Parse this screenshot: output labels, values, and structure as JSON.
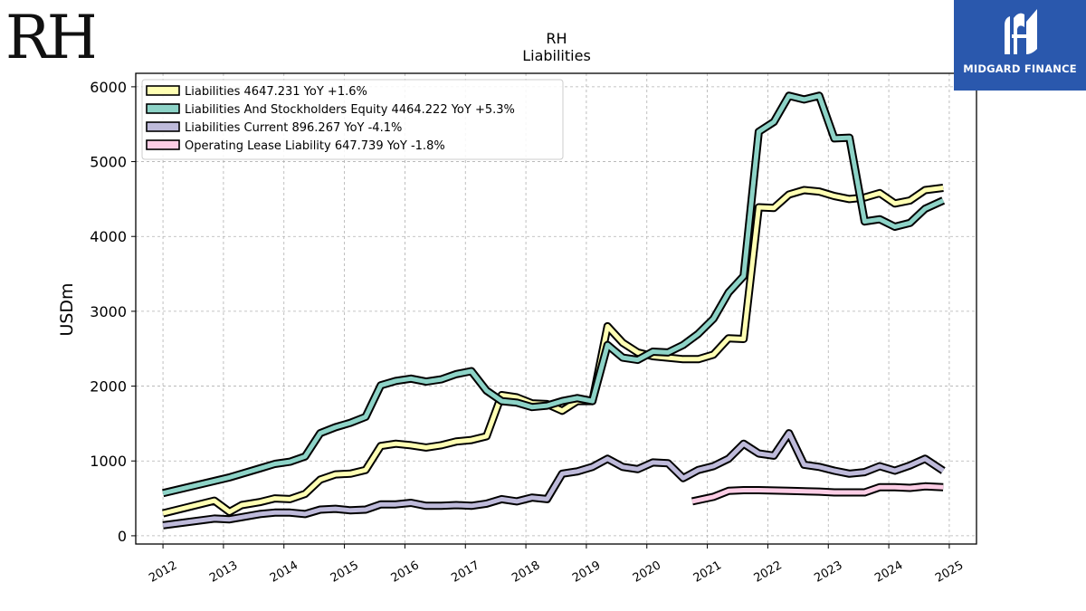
{
  "company_logo": {
    "text": "RH"
  },
  "brand": {
    "name": "MIDGARD FINANCE",
    "color": "#2a58ad"
  },
  "chart_data": {
    "type": "line",
    "title": "RH",
    "subtitle": "Liabilities",
    "ylabel": "USDm",
    "xlabel": "",
    "xlim": [
      2011.55,
      2025.45
    ],
    "ylim": [
      -110,
      6180
    ],
    "xticks": [
      2012,
      2013,
      2014,
      2015,
      2016,
      2017,
      2018,
      2019,
      2020,
      2021,
      2022,
      2023,
      2024,
      2025
    ],
    "xtick_labels": [
      "2012",
      "2013",
      "2014",
      "2015",
      "2016",
      "2017",
      "2018",
      "2019",
      "2020",
      "2021",
      "2022",
      "2023",
      "2024",
      "2025"
    ],
    "yticks": [
      0,
      1000,
      2000,
      3000,
      4000,
      5000,
      6000
    ],
    "ytick_labels": [
      "0",
      "1000",
      "2000",
      "3000",
      "4000",
      "5000",
      "6000"
    ],
    "grid": true,
    "legend_position": "top-left",
    "series": [
      {
        "name": "Liabilities",
        "legend_label": "Liabilities  4647.231 YoY +1.6%",
        "color": "#ffffb3",
        "points": [
          [
            2012.0,
            300
          ],
          [
            2012.85,
            470
          ],
          [
            2013.1,
            320
          ],
          [
            2013.3,
            410
          ],
          [
            2013.6,
            450
          ],
          [
            2013.85,
            500
          ],
          [
            2014.1,
            490
          ],
          [
            2014.35,
            560
          ],
          [
            2014.6,
            750
          ],
          [
            2014.85,
            820
          ],
          [
            2015.1,
            830
          ],
          [
            2015.35,
            880
          ],
          [
            2015.6,
            1200
          ],
          [
            2015.85,
            1230
          ],
          [
            2016.1,
            1210
          ],
          [
            2016.35,
            1180
          ],
          [
            2016.6,
            1210
          ],
          [
            2016.85,
            1260
          ],
          [
            2017.1,
            1280
          ],
          [
            2017.35,
            1330
          ],
          [
            2017.6,
            1880
          ],
          [
            2017.85,
            1850
          ],
          [
            2018.1,
            1770
          ],
          [
            2018.35,
            1760
          ],
          [
            2018.6,
            1670
          ],
          [
            2018.85,
            1800
          ],
          [
            2019.1,
            1800
          ],
          [
            2019.35,
            2800
          ],
          [
            2019.6,
            2580
          ],
          [
            2019.85,
            2450
          ],
          [
            2020.1,
            2400
          ],
          [
            2020.35,
            2380
          ],
          [
            2020.6,
            2360
          ],
          [
            2020.85,
            2360
          ],
          [
            2021.1,
            2420
          ],
          [
            2021.35,
            2640
          ],
          [
            2021.6,
            2630
          ],
          [
            2021.85,
            4390
          ],
          [
            2022.1,
            4380
          ],
          [
            2022.35,
            4560
          ],
          [
            2022.6,
            4620
          ],
          [
            2022.85,
            4600
          ],
          [
            2023.1,
            4540
          ],
          [
            2023.35,
            4500
          ],
          [
            2023.6,
            4520
          ],
          [
            2023.85,
            4580
          ],
          [
            2024.1,
            4440
          ],
          [
            2024.35,
            4480
          ],
          [
            2024.6,
            4620
          ],
          [
            2024.9,
            4650
          ]
        ]
      },
      {
        "name": "Liabilities And Stockholders Equity",
        "legend_label": "Liabilities And Stockholders Equity  4464.222 YoY +5.3%",
        "color": "#8dd3c7",
        "points": [
          [
            2012.0,
            570
          ],
          [
            2013.1,
            780
          ],
          [
            2013.6,
            900
          ],
          [
            2013.85,
            960
          ],
          [
            2014.1,
            990
          ],
          [
            2014.35,
            1060
          ],
          [
            2014.6,
            1370
          ],
          [
            2014.85,
            1450
          ],
          [
            2015.1,
            1510
          ],
          [
            2015.35,
            1590
          ],
          [
            2015.6,
            2010
          ],
          [
            2015.85,
            2070
          ],
          [
            2016.1,
            2100
          ],
          [
            2016.35,
            2060
          ],
          [
            2016.6,
            2090
          ],
          [
            2016.85,
            2160
          ],
          [
            2017.1,
            2200
          ],
          [
            2017.35,
            1940
          ],
          [
            2017.6,
            1800
          ],
          [
            2017.85,
            1780
          ],
          [
            2018.1,
            1720
          ],
          [
            2018.35,
            1740
          ],
          [
            2018.6,
            1800
          ],
          [
            2018.85,
            1840
          ],
          [
            2019.1,
            1800
          ],
          [
            2019.35,
            2550
          ],
          [
            2019.6,
            2380
          ],
          [
            2019.85,
            2350
          ],
          [
            2020.1,
            2460
          ],
          [
            2020.35,
            2450
          ],
          [
            2020.6,
            2550
          ],
          [
            2020.85,
            2700
          ],
          [
            2021.1,
            2900
          ],
          [
            2021.35,
            3250
          ],
          [
            2021.6,
            3470
          ],
          [
            2021.85,
            5400
          ],
          [
            2022.1,
            5530
          ],
          [
            2022.35,
            5880
          ],
          [
            2022.6,
            5830
          ],
          [
            2022.85,
            5880
          ],
          [
            2023.1,
            5310
          ],
          [
            2023.35,
            5320
          ],
          [
            2023.6,
            4200
          ],
          [
            2023.85,
            4230
          ],
          [
            2024.1,
            4130
          ],
          [
            2024.35,
            4180
          ],
          [
            2024.6,
            4370
          ],
          [
            2024.9,
            4480
          ]
        ]
      },
      {
        "name": "Liabilities Current",
        "legend_label": "Liabilities Current  896.267 YoY -4.1%",
        "color": "#bebada",
        "points": [
          [
            2012.0,
            140
          ],
          [
            2012.85,
            230
          ],
          [
            2013.1,
            220
          ],
          [
            2013.6,
            290
          ],
          [
            2013.85,
            310
          ],
          [
            2014.1,
            310
          ],
          [
            2014.35,
            290
          ],
          [
            2014.6,
            350
          ],
          [
            2014.85,
            360
          ],
          [
            2015.1,
            340
          ],
          [
            2015.35,
            350
          ],
          [
            2015.6,
            420
          ],
          [
            2015.85,
            420
          ],
          [
            2016.1,
            440
          ],
          [
            2016.35,
            400
          ],
          [
            2016.6,
            400
          ],
          [
            2016.85,
            410
          ],
          [
            2017.1,
            400
          ],
          [
            2017.35,
            430
          ],
          [
            2017.6,
            490
          ],
          [
            2017.85,
            460
          ],
          [
            2018.1,
            510
          ],
          [
            2018.35,
            490
          ],
          [
            2018.6,
            830
          ],
          [
            2018.85,
            860
          ],
          [
            2019.1,
            920
          ],
          [
            2019.35,
            1030
          ],
          [
            2019.6,
            920
          ],
          [
            2019.85,
            890
          ],
          [
            2020.1,
            980
          ],
          [
            2020.35,
            970
          ],
          [
            2020.6,
            770
          ],
          [
            2020.85,
            880
          ],
          [
            2021.1,
            930
          ],
          [
            2021.35,
            1030
          ],
          [
            2021.6,
            1230
          ],
          [
            2021.85,
            1100
          ],
          [
            2022.1,
            1070
          ],
          [
            2022.35,
            1370
          ],
          [
            2022.6,
            950
          ],
          [
            2022.85,
            920
          ],
          [
            2023.1,
            870
          ],
          [
            2023.35,
            830
          ],
          [
            2023.6,
            850
          ],
          [
            2023.85,
            930
          ],
          [
            2024.1,
            870
          ],
          [
            2024.35,
            940
          ],
          [
            2024.6,
            1030
          ],
          [
            2024.9,
            870
          ]
        ]
      },
      {
        "name": "Operating Lease Liability",
        "legend_label": "Operating Lease Liability  647.739 YoY -1.8%",
        "color": "#fccde5",
        "points": [
          [
            2020.75,
            460
          ],
          [
            2021.1,
            520
          ],
          [
            2021.35,
            600
          ],
          [
            2021.6,
            610
          ],
          [
            2021.85,
            610
          ],
          [
            2022.35,
            600
          ],
          [
            2022.85,
            590
          ],
          [
            2023.1,
            580
          ],
          [
            2023.6,
            580
          ],
          [
            2023.85,
            650
          ],
          [
            2024.1,
            650
          ],
          [
            2024.35,
            640
          ],
          [
            2024.6,
            660
          ],
          [
            2024.9,
            650
          ]
        ]
      }
    ]
  }
}
